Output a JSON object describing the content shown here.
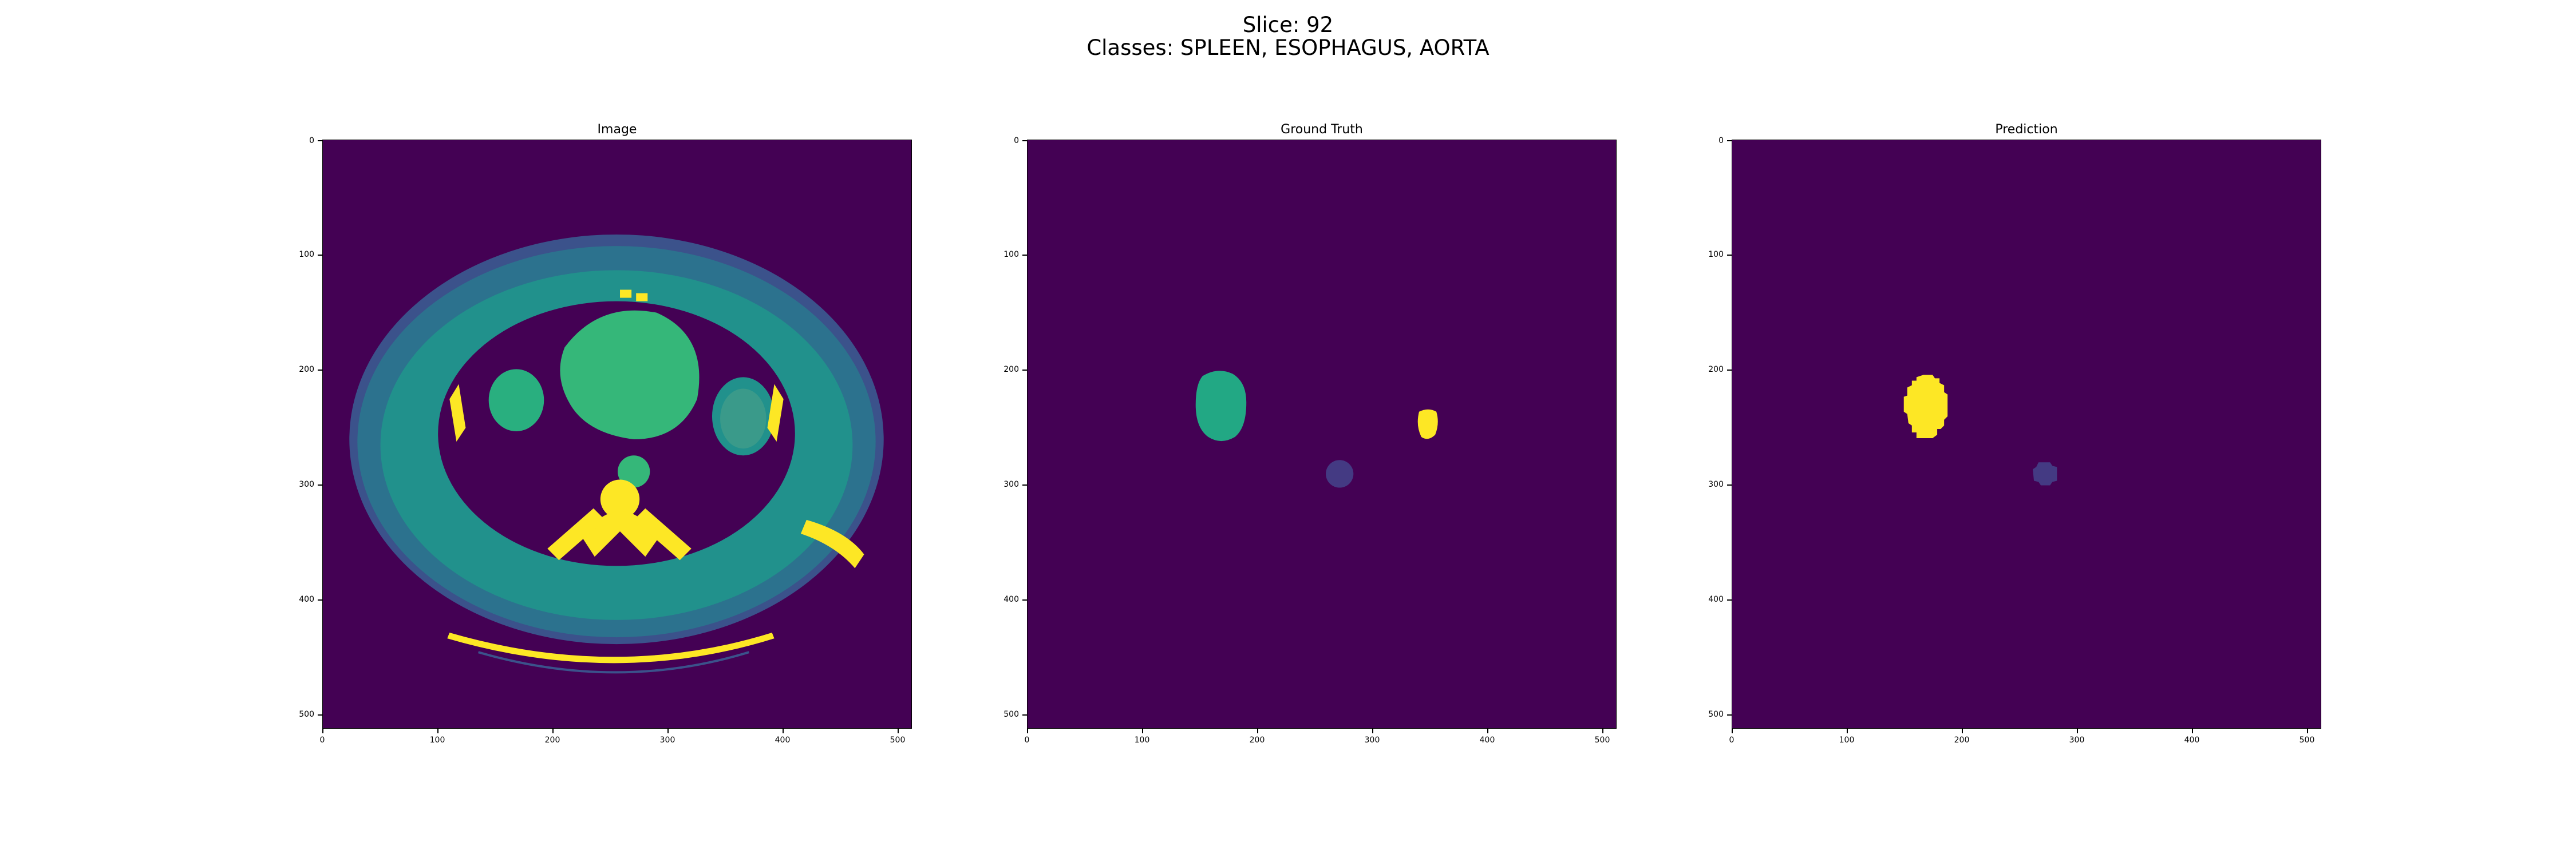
{
  "figure": {
    "title_line1": "Slice: 92",
    "title_line2": "Classes: SPLEEN, ESOPHAGUS, AORTA"
  },
  "panels": [
    {
      "title": "Image"
    },
    {
      "title": "Ground Truth"
    },
    {
      "title": "Prediction"
    }
  ],
  "axes": {
    "extent": [
      0,
      512
    ],
    "x_ticks": [
      "0",
      "100",
      "200",
      "300",
      "400",
      "500"
    ],
    "y_ticks": [
      "0",
      "100",
      "200",
      "300",
      "400",
      "500"
    ]
  },
  "colors": {
    "background": "#440154",
    "spleen": "#22a884",
    "esophagus": "#443a83",
    "aorta": "#fde725",
    "ct_tissue": "#2a9a8a",
    "ct_bone": "#fde725"
  }
}
